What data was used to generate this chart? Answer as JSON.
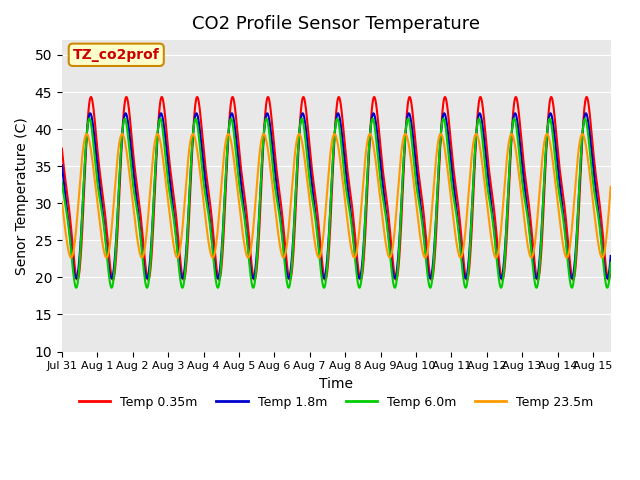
{
  "title": "CO2 Profile Sensor Temperature",
  "xlabel": "Time",
  "ylabel": "Senor Temperature (C)",
  "annotation_text": "TZ_co2prof",
  "annotation_color": "#cc0000",
  "annotation_bg": "#ffffcc",
  "annotation_border": "#cc8800",
  "ylim": [
    10,
    52
  ],
  "yticks": [
    10,
    15,
    20,
    25,
    30,
    35,
    40,
    45,
    50
  ],
  "bg_color": "#e8e8e8",
  "series_colors": [
    "#ff0000",
    "#0000cc",
    "#00cc00",
    "#ff9900"
  ],
  "series_labels": [
    "Temp 0.35m",
    "Temp 1.8m",
    "Temp 6.0m",
    "Temp 23.5m"
  ],
  "line_width": 1.5,
  "start_day": 0,
  "num_days": 15.5,
  "period": 1.0,
  "amplitude_red": 13,
  "amplitude_blue": 12,
  "amplitude_green": 12,
  "amplitude_orange": 10
}
